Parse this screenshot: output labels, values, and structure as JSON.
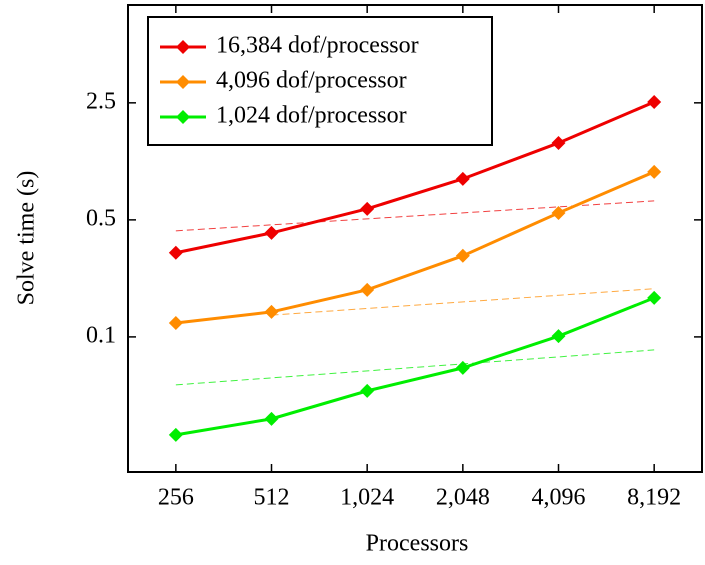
{
  "chart_data": {
    "type": "line",
    "x_label": "Processors",
    "y_label": "Solve time (s)",
    "x": [
      256,
      512,
      1024,
      2048,
      4096,
      8192
    ],
    "x_scale": "log",
    "y_scale": "log",
    "xlim": [
      181,
      11585
    ],
    "ylim": [
      0.0156,
      9.6
    ],
    "xticks": [
      256,
      512,
      {
        "value": 1024,
        "label": "1,024"
      },
      {
        "value": 2048,
        "label": "2,048"
      },
      {
        "value": 4096,
        "label": "4,096"
      },
      {
        "value": 8192,
        "label": "8,192"
      }
    ],
    "yticks": [
      0.1,
      0.5,
      2.5
    ],
    "legend": "upper left",
    "series": [
      {
        "name": "16,384 dof/processor",
        "color": "#ee0000",
        "values": [
          0.318,
          0.418,
          0.582,
          0.879,
          1.44,
          2.53
        ]
      },
      {
        "name": "4,096 dof/processor",
        "color": "#ff8c00",
        "values": [
          0.121,
          0.141,
          0.191,
          0.305,
          0.55,
          0.968
        ]
      },
      {
        "name": "1,024 dof/processor",
        "color": "#00ee00",
        "values": [
          0.026,
          0.0324,
          0.0476,
          0.0653,
          0.101,
          0.171
        ]
      }
    ],
    "reference_lines": [
      {
        "color": "#ee0000",
        "x": [
          256,
          8192
        ],
        "values": [
          0.43,
          0.649
        ]
      },
      {
        "color": "#ff8c00",
        "x": [
          512,
          8192
        ],
        "values": [
          0.135,
          0.194
        ]
      },
      {
        "color": "#00ee00",
        "x": [
          256,
          8192
        ],
        "values": [
          0.0517,
          0.0836
        ]
      }
    ]
  }
}
